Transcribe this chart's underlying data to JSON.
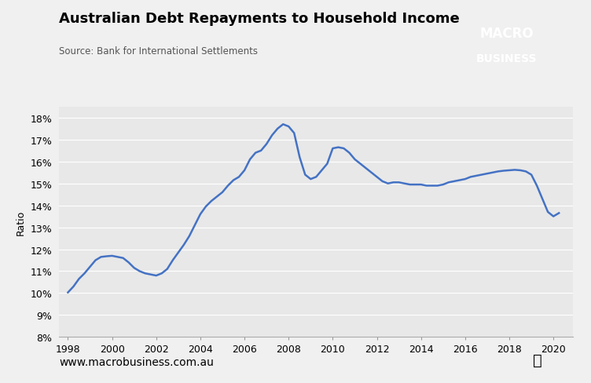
{
  "title": "Australian Debt Repayments to Household Income",
  "subtitle": "Source: Bank for International Settlements",
  "ylabel": "Ratio",
  "xlabel": "",
  "website": "www.macrobusiness.com.au",
  "plot_bg_color": "#e8e8e8",
  "fig_bg_color": "#f0f0f0",
  "line_color": "#4472c4",
  "ylim": [
    0.08,
    0.185
  ],
  "yticks": [
    0.08,
    0.09,
    0.1,
    0.11,
    0.12,
    0.13,
    0.14,
    0.15,
    0.16,
    0.17,
    0.18
  ],
  "xticks": [
    1998,
    2000,
    2002,
    2004,
    2006,
    2008,
    2010,
    2012,
    2014,
    2016,
    2018,
    2020
  ],
  "xlim": [
    1997.6,
    2020.9
  ],
  "x": [
    1998.0,
    1998.25,
    1998.5,
    1998.75,
    1999.0,
    1999.25,
    1999.5,
    1999.75,
    2000.0,
    2000.25,
    2000.5,
    2000.75,
    2001.0,
    2001.25,
    2001.5,
    2001.75,
    2002.0,
    2002.25,
    2002.5,
    2002.75,
    2003.0,
    2003.25,
    2003.5,
    2003.75,
    2004.0,
    2004.25,
    2004.5,
    2004.75,
    2005.0,
    2005.25,
    2005.5,
    2005.75,
    2006.0,
    2006.25,
    2006.5,
    2006.75,
    2007.0,
    2007.25,
    2007.5,
    2007.75,
    2008.0,
    2008.25,
    2008.5,
    2008.75,
    2009.0,
    2009.25,
    2009.5,
    2009.75,
    2010.0,
    2010.25,
    2010.5,
    2010.75,
    2011.0,
    2011.25,
    2011.5,
    2011.75,
    2012.0,
    2012.25,
    2012.5,
    2012.75,
    2013.0,
    2013.25,
    2013.5,
    2013.75,
    2014.0,
    2014.25,
    2014.5,
    2014.75,
    2015.0,
    2015.25,
    2015.5,
    2015.75,
    2016.0,
    2016.25,
    2016.5,
    2016.75,
    2017.0,
    2017.25,
    2017.5,
    2017.75,
    2018.0,
    2018.25,
    2018.5,
    2018.75,
    2019.0,
    2019.25,
    2019.5,
    2019.75,
    2020.0,
    2020.25
  ],
  "y": [
    0.1003,
    0.103,
    0.1065,
    0.109,
    0.112,
    0.115,
    0.1165,
    0.1168,
    0.117,
    0.1165,
    0.116,
    0.114,
    0.1115,
    0.11,
    0.109,
    0.1085,
    0.108,
    0.109,
    0.111,
    0.115,
    0.1185,
    0.122,
    0.126,
    0.131,
    0.136,
    0.1395,
    0.142,
    0.144,
    0.146,
    0.149,
    0.1515,
    0.153,
    0.156,
    0.161,
    0.164,
    0.165,
    0.168,
    0.172,
    0.175,
    0.177,
    0.176,
    0.173,
    0.162,
    0.154,
    0.152,
    0.153,
    0.156,
    0.159,
    0.166,
    0.1665,
    0.166,
    0.164,
    0.161,
    0.159,
    0.157,
    0.155,
    0.153,
    0.151,
    0.15,
    0.1505,
    0.1505,
    0.15,
    0.1495,
    0.1495,
    0.1495,
    0.149,
    0.149,
    0.149,
    0.1495,
    0.1505,
    0.151,
    0.1515,
    0.152,
    0.153,
    0.1535,
    0.154,
    0.1545,
    0.155,
    0.1555,
    0.1558,
    0.156,
    0.1562,
    0.156,
    0.1555,
    0.154,
    0.149,
    0.143,
    0.137,
    0.135,
    0.1365
  ]
}
